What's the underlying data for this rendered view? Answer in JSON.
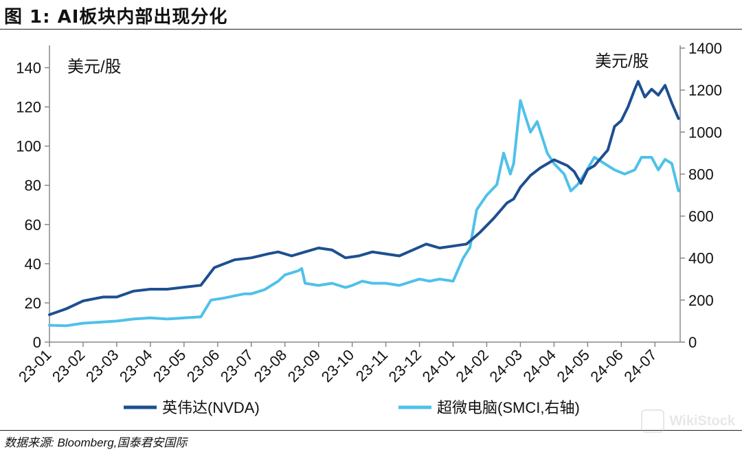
{
  "figure_title": "图 1: AI板块内部出现分化",
  "source": "数据来源: Bloomberg,国泰君安国际",
  "watermark": "WikiStock",
  "colors": {
    "nvda": "#1d4f91",
    "smci": "#4fc1ea",
    "axis": "#888888"
  },
  "chart_data": {
    "type": "line",
    "title": "AI板块内部出现分化",
    "left_axis": {
      "label": "美元/股",
      "range": [
        0,
        150
      ],
      "ticks": [
        0,
        20,
        40,
        60,
        80,
        100,
        120,
        140
      ]
    },
    "right_axis": {
      "label": "美元/股",
      "range": [
        0,
        1400
      ],
      "ticks": [
        0,
        200,
        400,
        600,
        800,
        1000,
        1200,
        1400
      ]
    },
    "x_ticks": [
      "23-01",
      "23-02",
      "23-03",
      "23-04",
      "23-05",
      "23-06",
      "23-07",
      "23-08",
      "23-09",
      "23-10",
      "23-11",
      "23-12",
      "24-01",
      "24-02",
      "24-03",
      "24-04",
      "24-05",
      "24-06",
      "24-07"
    ],
    "x_range": [
      0,
      18.75
    ],
    "series": [
      {
        "name": "英伟达(NVDA)",
        "axis": "left",
        "color": "#1d4f91",
        "x": [
          0.0,
          0.5,
          1.0,
          1.3,
          1.6,
          2.0,
          2.5,
          3.0,
          3.5,
          4.0,
          4.5,
          4.9,
          5.2,
          5.5,
          6.0,
          6.5,
          6.8,
          7.2,
          7.6,
          8.0,
          8.4,
          8.8,
          9.2,
          9.6,
          10.0,
          10.4,
          10.8,
          11.2,
          11.6,
          12.0,
          12.4,
          12.8,
          13.2,
          13.6,
          13.8,
          14.0,
          14.3,
          14.6,
          15.0,
          15.4,
          15.6,
          15.8,
          16.0,
          16.2,
          16.4,
          16.6,
          16.8,
          17.0,
          17.2,
          17.4,
          17.5,
          17.7,
          17.9,
          18.1,
          18.3,
          18.5,
          18.7
        ],
        "y": [
          14,
          17,
          21,
          22,
          23,
          23,
          26,
          27,
          27,
          28,
          29,
          38,
          40,
          42,
          43,
          45,
          46,
          44,
          46,
          48,
          47,
          43,
          44,
          46,
          45,
          44,
          47,
          50,
          48,
          49,
          50,
          56,
          63,
          71,
          73,
          79,
          85,
          89,
          93,
          90,
          87,
          81,
          88,
          90,
          94,
          98,
          110,
          113,
          120,
          129,
          133,
          125,
          129,
          126,
          131,
          122,
          114
        ]
      },
      {
        "name": "超微电脑(SMCI,右轴)",
        "axis": "right",
        "color": "#4fc1ea",
        "x": [
          0.0,
          0.5,
          1.0,
          1.5,
          2.0,
          2.5,
          3.0,
          3.5,
          4.0,
          4.5,
          4.8,
          5.2,
          5.5,
          5.8,
          6.0,
          6.4,
          6.8,
          7.0,
          7.4,
          7.5,
          7.6,
          8.0,
          8.4,
          8.8,
          9.0,
          9.3,
          9.6,
          10.0,
          10.4,
          10.8,
          11.0,
          11.3,
          11.6,
          12.0,
          12.3,
          12.5,
          12.7,
          13.0,
          13.3,
          13.5,
          13.7,
          13.8,
          13.9,
          14.0,
          14.1,
          14.3,
          14.5,
          14.7,
          14.8,
          15.0,
          15.3,
          15.5,
          15.7,
          15.9,
          16.2,
          16.5,
          16.8,
          17.1,
          17.4,
          17.6,
          17.9,
          18.1,
          18.3,
          18.5,
          18.7
        ],
        "y": [
          80,
          78,
          90,
          95,
          100,
          110,
          115,
          110,
          115,
          120,
          200,
          210,
          220,
          230,
          230,
          250,
          290,
          320,
          340,
          350,
          280,
          270,
          280,
          260,
          270,
          290,
          280,
          280,
          270,
          290,
          300,
          290,
          300,
          290,
          400,
          450,
          630,
          700,
          750,
          900,
          800,
          850,
          1000,
          1150,
          1100,
          1000,
          1050,
          950,
          900,
          850,
          800,
          720,
          750,
          800,
          880,
          850,
          820,
          800,
          820,
          880,
          880,
          820,
          870,
          850,
          720
        ]
      }
    ],
    "legend": {
      "placement": "bottom",
      "entries": [
        "英伟达(NVDA)",
        "超微电脑(SMCI,右轴)"
      ]
    }
  }
}
